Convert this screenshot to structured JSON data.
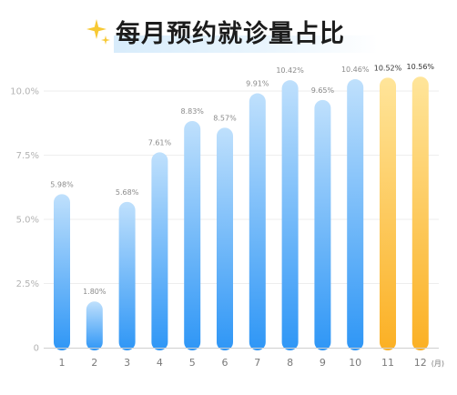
{
  "title": "每月预约就诊量占比",
  "colors": {
    "blue_top": "#bfe0fc",
    "blue_bottom": "#2e96f6",
    "gold_top": "#ffe59a",
    "gold_bottom": "#fbb024",
    "grid": "#eeeeee",
    "axis": "#cfcfcf"
  },
  "icons": {
    "title_icon": "sparkle-icon"
  },
  "chart_data": {
    "type": "bar",
    "categories": [
      "1",
      "2",
      "3",
      "4",
      "5",
      "6",
      "7",
      "8",
      "9",
      "10",
      "11",
      "12"
    ],
    "values": [
      5.98,
      1.8,
      5.68,
      7.61,
      8.83,
      8.57,
      9.91,
      10.42,
      9.65,
      10.46,
      10.52,
      10.56
    ],
    "data_labels": [
      "5.98%",
      "1.80%",
      "5.68%",
      "7.61%",
      "8.83%",
      "8.57%",
      "9.91%",
      "10.42%",
      "9.65%",
      "10.46%",
      "10.52%",
      "10.56%"
    ],
    "highlighted": [
      "11",
      "12"
    ],
    "y_ticks": [
      "0",
      "2.5%",
      "5.0%",
      "7.5%",
      "10.0%"
    ],
    "y_tick_values": [
      0,
      2.5,
      5.0,
      7.5,
      10.0
    ],
    "x_unit": "(月)",
    "ylim": [
      0,
      10.0
    ],
    "grid": true,
    "legend": "none"
  }
}
